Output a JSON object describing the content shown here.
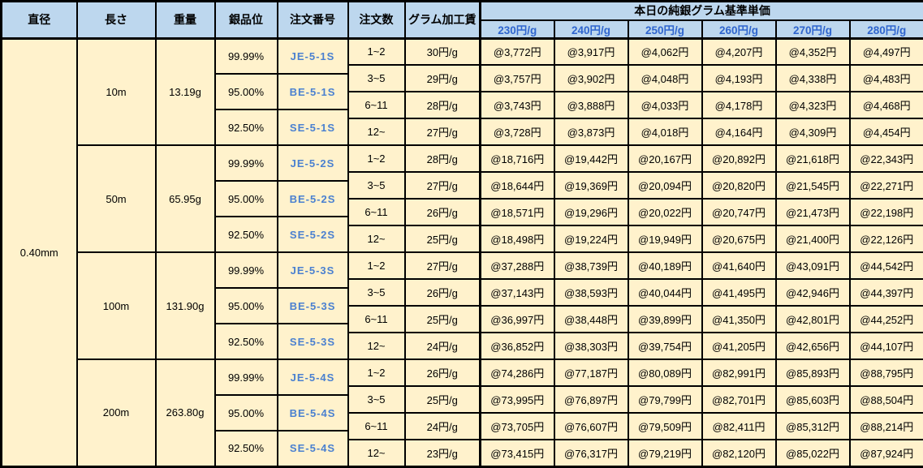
{
  "header": {
    "columns": [
      "直径",
      "長さ",
      "重量",
      "銀品位",
      "注文番号",
      "注文数",
      "グラム加工賃"
    ],
    "price_group_title": "本日の純銀グラム基準単価",
    "price_tiers": [
      "230円/g",
      "240円/g",
      "250円/g",
      "260円/g",
      "270円/g",
      "280円/g"
    ]
  },
  "diameter": "0.40mm",
  "groups": [
    {
      "length": "10m",
      "weight": "13.19g",
      "purities": [
        {
          "purity": "99.99%",
          "order_no": "JE-5-1S"
        },
        {
          "purity": "95.00%",
          "order_no": "BE-5-1S"
        },
        {
          "purity": "92.50%",
          "order_no": "SE-5-1S"
        }
      ],
      "rows": [
        {
          "qty": "1~2",
          "fee": "30円/g",
          "prices": [
            "@3,772円",
            "@3,917円",
            "@4,062円",
            "@4,207円",
            "@4,352円",
            "@4,497円"
          ]
        },
        {
          "qty": "3~5",
          "fee": "29円/g",
          "prices": [
            "@3,757円",
            "@3,902円",
            "@4,048円",
            "@4,193円",
            "@4,338円",
            "@4,483円"
          ]
        },
        {
          "qty": "6~11",
          "fee": "28円/g",
          "prices": [
            "@3,743円",
            "@3,888円",
            "@4,033円",
            "@4,178円",
            "@4,323円",
            "@4,468円"
          ]
        },
        {
          "qty": "12~",
          "fee": "27円/g",
          "prices": [
            "@3,728円",
            "@3,873円",
            "@4,018円",
            "@4,164円",
            "@4,309円",
            "@4,454円"
          ]
        }
      ]
    },
    {
      "length": "50m",
      "weight": "65.95g",
      "purities": [
        {
          "purity": "99.99%",
          "order_no": "JE-5-2S"
        },
        {
          "purity": "95.00%",
          "order_no": "BE-5-2S"
        },
        {
          "purity": "92.50%",
          "order_no": "SE-5-2S"
        }
      ],
      "rows": [
        {
          "qty": "1~2",
          "fee": "28円/g",
          "prices": [
            "@18,716円",
            "@19,442円",
            "@20,167円",
            "@20,892円",
            "@21,618円",
            "@22,343円"
          ]
        },
        {
          "qty": "3~5",
          "fee": "27円/g",
          "prices": [
            "@18,644円",
            "@19,369円",
            "@20,094円",
            "@20,820円",
            "@21,545円",
            "@22,271円"
          ]
        },
        {
          "qty": "6~11",
          "fee": "26円/g",
          "prices": [
            "@18,571円",
            "@19,296円",
            "@20,022円",
            "@20,747円",
            "@21,473円",
            "@22,198円"
          ]
        },
        {
          "qty": "12~",
          "fee": "25円/g",
          "prices": [
            "@18,498円",
            "@19,224円",
            "@19,949円",
            "@20,675円",
            "@21,400円",
            "@22,126円"
          ]
        }
      ]
    },
    {
      "length": "100m",
      "weight": "131.90g",
      "purities": [
        {
          "purity": "99.99%",
          "order_no": "JE-5-3S"
        },
        {
          "purity": "95.00%",
          "order_no": "BE-5-3S"
        },
        {
          "purity": "92.50%",
          "order_no": "SE-5-3S"
        }
      ],
      "rows": [
        {
          "qty": "1~2",
          "fee": "27円/g",
          "prices": [
            "@37,288円",
            "@38,739円",
            "@40,189円",
            "@41,640円",
            "@43,091円",
            "@44,542円"
          ]
        },
        {
          "qty": "3~5",
          "fee": "26円/g",
          "prices": [
            "@37,143円",
            "@38,593円",
            "@40,044円",
            "@41,495円",
            "@42,946円",
            "@44,397円"
          ]
        },
        {
          "qty": "6~11",
          "fee": "25円/g",
          "prices": [
            "@36,997円",
            "@38,448円",
            "@39,899円",
            "@41,350円",
            "@42,801円",
            "@44,252円"
          ]
        },
        {
          "qty": "12~",
          "fee": "24円/g",
          "prices": [
            "@36,852円",
            "@38,303円",
            "@39,754円",
            "@41,205円",
            "@42,656円",
            "@44,107円"
          ]
        }
      ]
    },
    {
      "length": "200m",
      "weight": "263.80g",
      "purities": [
        {
          "purity": "99.99%",
          "order_no": "JE-5-4S"
        },
        {
          "purity": "95.00%",
          "order_no": "BE-5-4S"
        },
        {
          "purity": "92.50%",
          "order_no": "SE-5-4S"
        }
      ],
      "rows": [
        {
          "qty": "1~2",
          "fee": "26円/g",
          "prices": [
            "@74,286円",
            "@77,187円",
            "@80,089円",
            "@82,991円",
            "@85,893円",
            "@88,795円"
          ]
        },
        {
          "qty": "3~5",
          "fee": "25円/g",
          "prices": [
            "@73,995円",
            "@76,897円",
            "@79,799円",
            "@82,701円",
            "@85,603円",
            "@88,504円"
          ]
        },
        {
          "qty": "6~11",
          "fee": "24円/g",
          "prices": [
            "@73,705円",
            "@76,607円",
            "@79,509円",
            "@82,411円",
            "@85,312円",
            "@88,214円"
          ]
        },
        {
          "qty": "12~",
          "fee": "23円/g",
          "prices": [
            "@73,415円",
            "@76,317円",
            "@79,219円",
            "@82,120円",
            "@85,022円",
            "@87,924円"
          ]
        }
      ]
    }
  ],
  "colors": {
    "header_bg": "#BDD7EE",
    "cell_bg": "#FFF2CC",
    "tier_text": "#2F65CE",
    "order_text": "#4A80D0",
    "border": "#000000"
  }
}
